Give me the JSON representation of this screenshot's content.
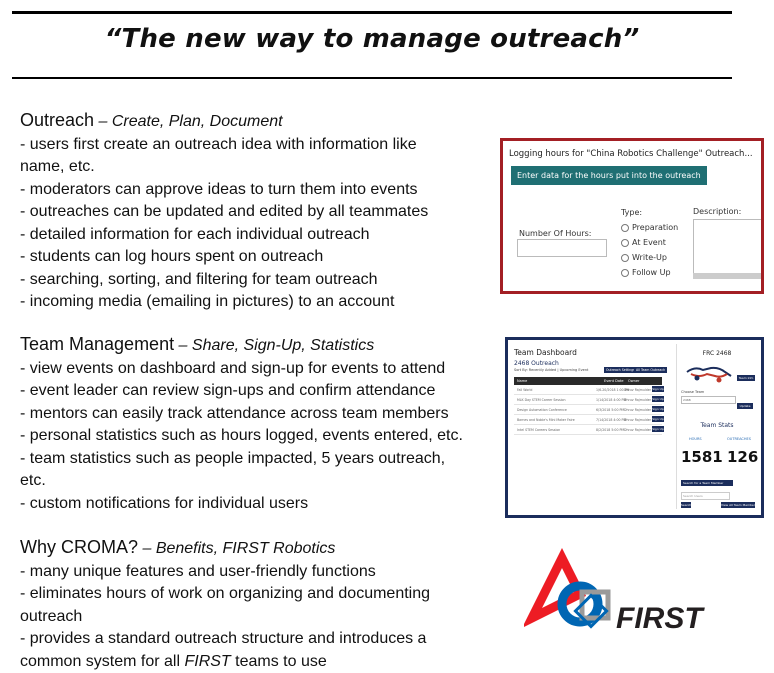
{
  "title": "“The new way to manage outreach”",
  "sections": [
    {
      "heading": "Outreach",
      "dash": " – ",
      "subheading": "Create, Plan, Document",
      "lines": [
        "- users first create an outreach idea with information like",
        "name, etc.",
        "- moderators can approve ideas to turn them into events",
        "- outreaches can be updated and edited by all teammates",
        "- detailed information for each individual outreach",
        "- students can log hours spent on outreach",
        "- searching, sorting, and filtering for team outreach",
        "- incoming media (emailing in pictures) to an account"
      ]
    },
    {
      "heading": "Team Management",
      "dash": " – ",
      "subheading": "Share, Sign-Up, Statistics",
      "lines": [
        "- view events on dashboard and sign-up for events to attend",
        "- event leader can review sign-ups and confirm attendance",
        "- mentors can easily track attendance across team members",
        "- personal statistics such as hours logged, events entered, etc.",
        "- team statistics such as people impacted, 5 years outreach,",
        "etc.",
        "- custom notifications for individual users"
      ]
    },
    {
      "heading": "Why CROMA?",
      "dash": " – ",
      "subheading": "Benefits, FIRST Robotics",
      "lines": [
        "- many unique features and user-friendly functions",
        "- eliminates hours of work on organizing and documenting",
        "outreach",
        "- provides a standard outreach structure and introduces a"
      ],
      "last_line_pre": "common system for all ",
      "last_line_em": "FIRST",
      "last_line_post": " teams to use"
    }
  ],
  "log_panel": {
    "title": "Logging hours for \"China Robotics Challenge\" Outreach...",
    "button": "Enter data for the hours put into the outreach",
    "hours_label": "Number Of Hours:",
    "type_label": "Type:",
    "types": [
      "Preparation",
      "At Event",
      "Write-Up",
      "Follow Up"
    ],
    "description_label": "Description:"
  },
  "dashboard": {
    "title": "Team Dashboard",
    "subtitle": "2468 Outreach",
    "sort_text": "Sort By: Recently Added | Upcoming Event",
    "buttons": [
      "Outreach Settings",
      "All Team Outreach"
    ],
    "columns": [
      "Name",
      "Event Date",
      "Owner"
    ],
    "rows": [
      {
        "name": "Fall World",
        "date": "1/6-20/2018 1:00 PM",
        "owner": "Dhruv Rajmulder",
        "action": "Sign Up"
      },
      {
        "name": "MLK Day STEM Career Session",
        "date": "1/14/2018 4:00 PM",
        "owner": "Dhruv Rajmulder",
        "action": "Sign Up"
      },
      {
        "name": "Design Automation Conference",
        "date": "6/3/2018 5:00 PM",
        "owner": "Dhruv Rajmulder",
        "action": "Sign Up"
      },
      {
        "name": "Barnes and Noble's Mini Maker Faire",
        "date": "7/14/2018 4:00 PM",
        "owner": "Dhruv Rajmulder",
        "action": "Sign Up"
      },
      {
        "name": "Intel STEM Careers Session",
        "date": "8/2/2018 5:00 PM",
        "owner": "Dhruv Rajmulder",
        "action": "Sign Up"
      }
    ],
    "team_number": "FRC 2468",
    "team_info_button": "Team Info",
    "choose_team_label": "Choose Team",
    "choose_team_value": "2468",
    "update_button": "Update",
    "stats_title": "Team Stats",
    "hours_label": "HOURS",
    "hours_value": "1581",
    "outreaches_label": "OUTREACHES",
    "outreaches_value": "126",
    "search_button": "Search for a Team Member",
    "search_placeholder": "Search Users",
    "go_button": "Search",
    "view_all_button": "View All Team Members"
  },
  "logo": {
    "wordmark": "FIRST",
    "colors": {
      "red": "#ed1c24",
      "blue": "#0066b3",
      "gray": "#9a9a9a",
      "black": "#231f20"
    }
  }
}
